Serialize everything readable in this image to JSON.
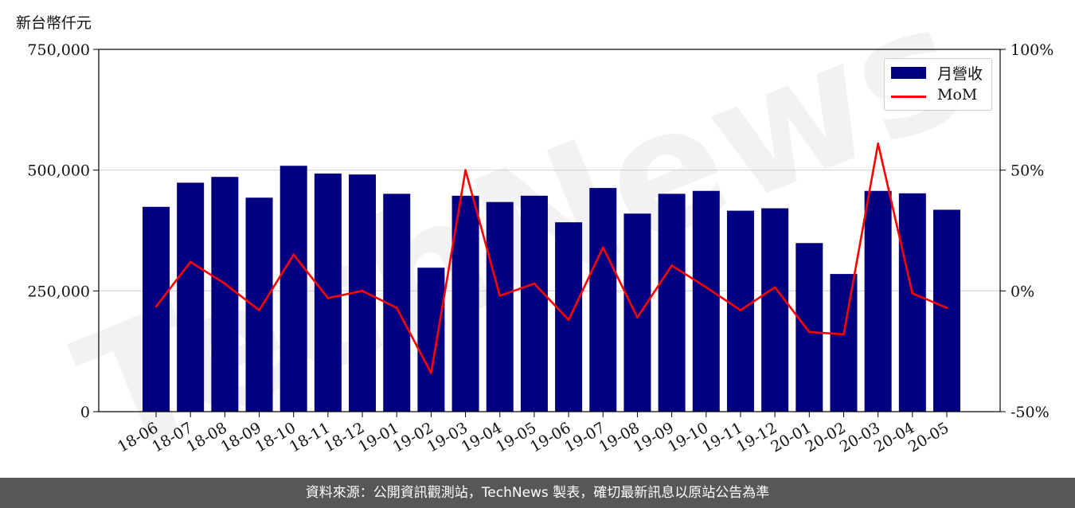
{
  "unit_label": "新台幣仟元",
  "footer_text": "資料來源：公開資訊觀測站，TechNews 製表，確切最新訊息以原站公告為準",
  "watermark": "TechNews",
  "colors": {
    "bar": "#000080",
    "line": "#ff0000",
    "grid": "#d3d3d3",
    "footer_bg": "#575757"
  },
  "chart_data": {
    "type": "bar",
    "categories": [
      "18-06",
      "18-07",
      "18-08",
      "18-09",
      "18-10",
      "18-11",
      "18-12",
      "19-01",
      "19-02",
      "19-03",
      "19-04",
      "19-05",
      "19-06",
      "19-07",
      "19-08",
      "19-09",
      "19-10",
      "19-11",
      "19-12",
      "20-01",
      "20-02",
      "20-03",
      "20-04",
      "20-05"
    ],
    "series": [
      {
        "name": "月營收",
        "type": "bar",
        "axis": "left",
        "values": [
          424000,
          474000,
          486000,
          443000,
          509000,
          493000,
          491000,
          451000,
          298000,
          447000,
          434000,
          447000,
          392000,
          463000,
          410000,
          451000,
          457000,
          416000,
          421000,
          349000,
          285000,
          457000,
          452000,
          418000
        ]
      },
      {
        "name": "MoM",
        "type": "line",
        "axis": "right",
        "values": [
          -6.5,
          12,
          3,
          -8,
          15,
          -3,
          0,
          -7,
          -34,
          50,
          -2,
          3,
          -12,
          18,
          -11,
          10.5,
          1.5,
          -8,
          1.5,
          -17,
          -18,
          61,
          -1,
          -7
        ]
      }
    ],
    "y_left": {
      "min": 0,
      "max": 750000,
      "ticks": [
        0,
        250000,
        500000,
        750000
      ],
      "tick_labels": [
        "0",
        "250,000",
        "500,000",
        "750,000"
      ]
    },
    "y_right": {
      "min": -50,
      "max": 100,
      "ticks": [
        -50,
        0,
        50,
        100
      ],
      "tick_labels": [
        "-50%",
        "0%",
        "50%",
        "100%"
      ]
    },
    "grid": "horizontal",
    "legend_position": "top-right"
  }
}
